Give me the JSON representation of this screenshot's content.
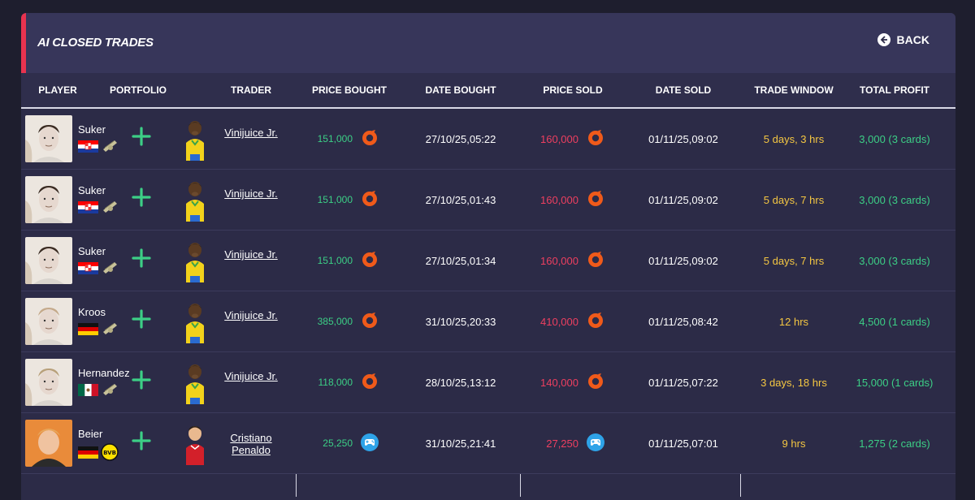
{
  "header": {
    "title": "AI CLOSED TRADES",
    "back_label": "BACK"
  },
  "columns": [
    "PLAYER",
    "PORTFOLIO",
    "TRADER",
    "PRICE BOUGHT",
    "DATE BOUGHT",
    "PRICE SOLD",
    "DATE SOLD",
    "TRADE WINDOW",
    "TOTAL PROFIT"
  ],
  "colors": {
    "accent": "#e8334f",
    "bought": "#3ccf86",
    "sold": "#ee3f60",
    "window": "#f5c742",
    "profit": "#3ccf86",
    "origin": "#f05a1a",
    "playstation": "#2ea3e8"
  },
  "trades": [
    {
      "player": "Suker",
      "flag": "croatia",
      "trader": "Vinijuice Jr.",
      "price_bought": "151,000",
      "date_bought": "27/10/25,05:22",
      "price_sold": "160,000",
      "date_sold": "01/11/25,09:02",
      "trade_window": "5 days, 3 hrs",
      "total_profit": "3,000 (3 cards)",
      "platform": "origin-icon"
    },
    {
      "player": "Suker",
      "flag": "croatia",
      "trader": "Vinijuice Jr.",
      "price_bought": "151,000",
      "date_bought": "27/10/25,01:43",
      "price_sold": "160,000",
      "date_sold": "01/11/25,09:02",
      "trade_window": "5 days, 7 hrs",
      "total_profit": "3,000 (3 cards)",
      "platform": "origin-icon"
    },
    {
      "player": "Suker",
      "flag": "croatia",
      "trader": "Vinijuice Jr.",
      "price_bought": "151,000",
      "date_bought": "27/10/25,01:34",
      "price_sold": "160,000",
      "date_sold": "01/11/25,09:02",
      "trade_window": "5 days, 7 hrs",
      "total_profit": "3,000 (3 cards)",
      "platform": "origin-icon"
    },
    {
      "player": "Kroos",
      "flag": "germany",
      "trader": "Vinijuice Jr.",
      "price_bought": "385,000",
      "date_bought": "31/10/25,20:33",
      "price_sold": "410,000",
      "date_sold": "01/11/25,08:42",
      "trade_window": "12 hrs",
      "total_profit": "4,500 (1 cards)",
      "platform": "origin-icon"
    },
    {
      "player": "Hernandez",
      "flag": "mexico",
      "trader": "Vinijuice Jr.",
      "price_bought": "118,000",
      "date_bought": "28/10/25,13:12",
      "price_sold": "140,000",
      "date_sold": "01/11/25,07:22",
      "trade_window": "3 days, 18 hrs",
      "total_profit": "15,000 (1 cards)",
      "platform": "origin-icon"
    },
    {
      "player": "Beier",
      "flag": "germany",
      "trader": "Cristiano Penaldo",
      "price_bought": "25,250",
      "date_bought": "31/10/25,21:41",
      "price_sold": "27,250",
      "date_sold": "01/11/25,07:01",
      "trade_window": "9 hrs",
      "total_profit": "1,275 (2 cards)",
      "platform": "playstation-icon"
    }
  ]
}
